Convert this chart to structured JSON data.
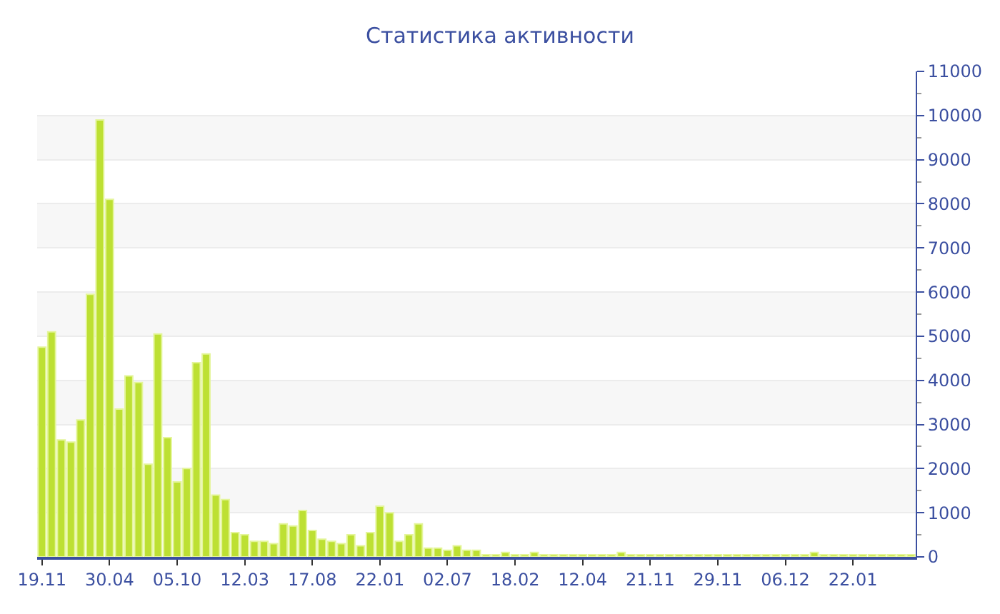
{
  "chart_data": {
    "type": "bar",
    "title": "Статистика активности",
    "categories": [
      "19.11",
      null,
      null,
      null,
      null,
      null,
      null,
      "30.04",
      null,
      null,
      null,
      null,
      null,
      null,
      "05.10",
      null,
      null,
      null,
      null,
      null,
      null,
      "12.03",
      null,
      null,
      null,
      null,
      null,
      null,
      "17.08",
      null,
      null,
      null,
      null,
      null,
      null,
      "22.01",
      null,
      null,
      null,
      null,
      null,
      null,
      "02.07",
      null,
      null,
      null,
      null,
      null,
      null,
      "18.02",
      null,
      null,
      null,
      null,
      null,
      null,
      "12.04",
      null,
      null,
      null,
      null,
      null,
      null,
      "21.11",
      null,
      null,
      null,
      null,
      null,
      null,
      "29.11",
      null,
      null,
      null,
      null,
      null,
      null,
      "06.12",
      null,
      null,
      null,
      null,
      null,
      null,
      "22.01",
      null,
      null,
      null,
      null,
      null,
      null
    ],
    "values": [
      4750,
      5100,
      2650,
      2600,
      3100,
      5950,
      9900,
      8100,
      3350,
      4100,
      3950,
      2100,
      5050,
      2700,
      1700,
      2000,
      4400,
      4600,
      1400,
      1300,
      550,
      500,
      350,
      350,
      300,
      750,
      700,
      1050,
      600,
      400,
      350,
      300,
      500,
      250,
      550,
      1150,
      1000,
      350,
      500,
      750,
      200,
      200,
      150,
      250,
      150,
      150,
      50,
      50,
      100,
      50,
      50,
      100,
      50,
      50,
      50,
      50,
      50,
      50,
      50,
      50,
      100,
      50,
      50,
      50,
      50,
      50,
      50,
      50,
      50,
      50,
      50,
      50,
      50,
      50,
      50,
      50,
      50,
      50,
      50,
      50,
      100,
      50,
      50,
      50,
      50,
      50,
      50,
      50,
      50,
      50,
      50
    ],
    "color": "#bde033",
    "ylim": [
      0,
      11000
    ],
    "yticks": [
      0,
      1000,
      2000,
      3000,
      4000,
      5000,
      6000,
      7000,
      8000,
      9000,
      10000,
      11000
    ],
    "grid": "y"
  }
}
